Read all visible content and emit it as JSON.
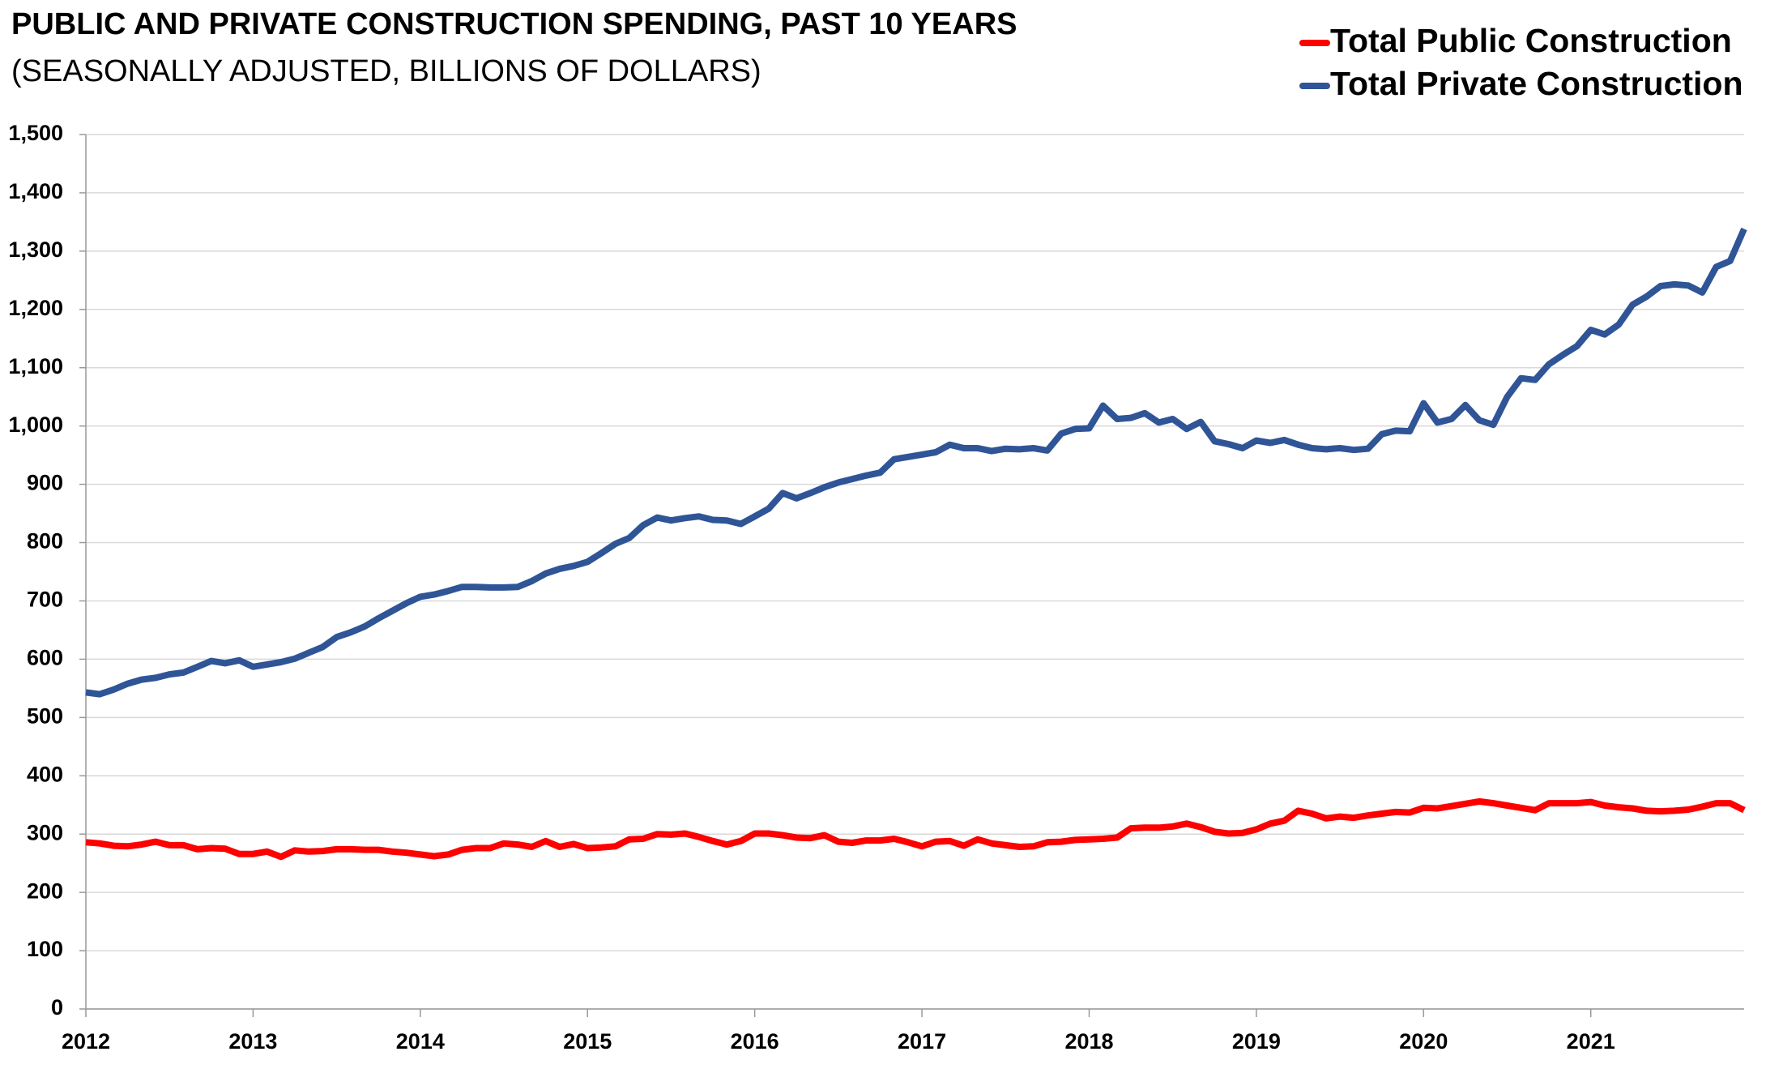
{
  "chart_data": {
    "type": "line",
    "title": "PUBLIC AND PRIVATE CONSTRUCTION SPENDING, PAST 10 YEARS",
    "subtitle": "(SEASONALLY ADJUSTED, BILLIONS OF DOLLARS)",
    "x": [
      2012,
      2012.083,
      2012.167,
      2012.25,
      2012.333,
      2012.417,
      2012.5,
      2012.583,
      2012.667,
      2012.75,
      2012.833,
      2012.917,
      2013,
      2013.083,
      2013.167,
      2013.25,
      2013.333,
      2013.417,
      2013.5,
      2013.583,
      2013.667,
      2013.75,
      2013.833,
      2013.917,
      2014,
      2014.083,
      2014.167,
      2014.25,
      2014.333,
      2014.417,
      2014.5,
      2014.583,
      2014.667,
      2014.75,
      2014.833,
      2014.917,
      2015,
      2015.083,
      2015.167,
      2015.25,
      2015.333,
      2015.417,
      2015.5,
      2015.583,
      2015.667,
      2015.75,
      2015.833,
      2015.917,
      2016,
      2016.083,
      2016.167,
      2016.25,
      2016.333,
      2016.417,
      2016.5,
      2016.583,
      2016.667,
      2016.75,
      2016.833,
      2016.917,
      2017,
      2017.083,
      2017.167,
      2017.25,
      2017.333,
      2017.417,
      2017.5,
      2017.583,
      2017.667,
      2017.75,
      2017.833,
      2017.917,
      2018,
      2018.083,
      2018.167,
      2018.25,
      2018.333,
      2018.417,
      2018.5,
      2018.583,
      2018.667,
      2018.75,
      2018.833,
      2018.917,
      2019,
      2019.083,
      2019.167,
      2019.25,
      2019.333,
      2019.417,
      2019.5,
      2019.583,
      2019.667,
      2019.75,
      2019.833,
      2019.917,
      2020,
      2020.083,
      2020.167,
      2020.25,
      2020.333,
      2020.417,
      2020.5,
      2020.583,
      2020.667,
      2020.75,
      2020.833,
      2020.917,
      2021,
      2021.083,
      2021.167,
      2021.25,
      2021.333,
      2021.417,
      2021.5,
      2021.583,
      2021.667,
      2021.75,
      2021.833,
      2021.917
    ],
    "series": [
      {
        "name": "Total Public Construction",
        "color": "#ff0000",
        "values": [
          286,
          284,
          280,
          279,
          282,
          287,
          281,
          281,
          274,
          276,
          275,
          266,
          266,
          270,
          261,
          272,
          270,
          271,
          274,
          274,
          273,
          273,
          270,
          268,
          265,
          262,
          265,
          273,
          276,
          276,
          284,
          282,
          278,
          288,
          278,
          283,
          276,
          277,
          279,
          291,
          292,
          300,
          299,
          301,
          295,
          288,
          282,
          288,
          301,
          301,
          298,
          294,
          293,
          298,
          287,
          285,
          289,
          289,
          292,
          286,
          279,
          287,
          288,
          280,
          291,
          284,
          281,
          278,
          279,
          286,
          287,
          290,
          291,
          292,
          294,
          310,
          311,
          311,
          313,
          318,
          312,
          304,
          301,
          302,
          308,
          318,
          323,
          340,
          335,
          327,
          330,
          328,
          332,
          335,
          338,
          337,
          345,
          344,
          348,
          352,
          356,
          353,
          349,
          345,
          341,
          353,
          353,
          353,
          355,
          349,
          346,
          344,
          340,
          339,
          340,
          342,
          347,
          353,
          353,
          341
        ]
      },
      {
        "name": "Total Private Construction",
        "color": "#2f5597",
        "values": [
          543,
          540,
          548,
          558,
          565,
          568,
          574,
          577,
          587,
          597,
          593,
          598,
          587,
          591,
          595,
          601,
          611,
          621,
          638,
          646,
          656,
          670,
          683,
          696,
          707,
          711,
          717,
          724,
          724,
          723,
          723,
          724,
          734,
          747,
          755,
          760,
          767,
          782,
          798,
          808,
          830,
          843,
          838,
          842,
          845,
          839,
          838,
          832,
          845,
          858,
          885,
          876,
          885,
          895,
          903,
          909,
          915,
          920,
          943,
          947,
          951,
          955,
          968,
          962,
          962,
          957,
          961,
          960,
          962,
          958,
          987,
          995,
          996,
          1035,
          1012,
          1014,
          1022,
          1006,
          1012,
          995,
          1007,
          974,
          969,
          962,
          975,
          971,
          976,
          968,
          962,
          960,
          962,
          959,
          961,
          986,
          992,
          991,
          1039,
          1006,
          1012,
          1036,
          1010,
          1002,
          1050,
          1082,
          1079,
          1106,
          1122,
          1137,
          1165,
          1157,
          1174,
          1208,
          1222,
          1240,
          1243,
          1241,
          1229,
          1273,
          1283,
          1338
        ]
      }
    ],
    "xlim": [
      2012,
      2021.917
    ],
    "xticks": [
      2012,
      2013,
      2014,
      2015,
      2016,
      2017,
      2018,
      2019,
      2020,
      2021
    ],
    "ylim": [
      0,
      1500
    ],
    "yticks": [
      0,
      100,
      200,
      300,
      400,
      500,
      600,
      700,
      800,
      900,
      {
        "value": 1000,
        "label": "1,000"
      },
      {
        "value": 1100,
        "label": "1,100"
      },
      {
        "value": 1200,
        "label": "1,200"
      },
      {
        "value": 1300,
        "label": "1,300"
      },
      {
        "value": 1400,
        "label": "1,400"
      },
      {
        "value": 1500,
        "label": "1,500"
      }
    ],
    "grid": true,
    "legend": "upper right"
  }
}
